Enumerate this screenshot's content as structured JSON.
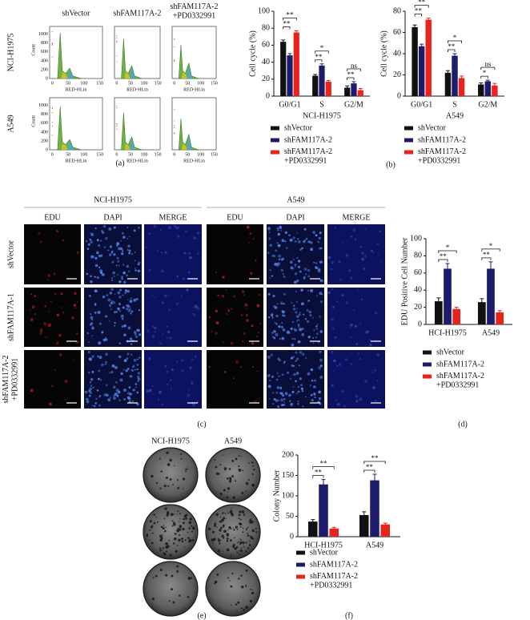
{
  "figure": {
    "panel_labels": [
      "(a)",
      "(b)",
      "(c)",
      "(d)",
      "(e)",
      "(f)"
    ],
    "flow": {
      "columns": [
        "shVector",
        "shFAM117A-2",
        "shFAM117A-2\n+PD0332991"
      ],
      "rows": [
        "NCI-H1975",
        "A549"
      ],
      "xlabel": "RED-HLin",
      "ylabel": "Count",
      "xticks": [
        0,
        50,
        100,
        150
      ],
      "yticks": [
        0,
        200,
        400,
        600,
        800,
        1000
      ]
    },
    "microscopy": {
      "groups": [
        "NCI-H1975",
        "A549"
      ],
      "channels": [
        "EDU",
        "DAPI",
        "MERGE"
      ],
      "rows": [
        "shVector",
        "shFAM117A-1",
        "shFAM117A-2\n+PD0332991"
      ]
    },
    "colony": {
      "columns": [
        "NCI-H1975",
        "A549"
      ]
    }
  },
  "chart_data": [
    {
      "type": "bar",
      "ylabel": "Cell cycle (%)",
      "xlabel": "NCI-H1975",
      "categories": [
        "G0/G1",
        "S",
        "G2/M"
      ],
      "series": [
        {
          "name": "shVector",
          "color": "#111111",
          "values": [
            64,
            24,
            10
          ],
          "errors": [
            2,
            1.5,
            2
          ]
        },
        {
          "name": "shFAM117A-2",
          "color": "#1c1c6b",
          "values": [
            48,
            36,
            15
          ],
          "errors": [
            2,
            2,
            2
          ]
        },
        {
          "name": "shFAM117A-2\n+PD0332991",
          "color": "#e8231b",
          "values": [
            75,
            17,
            7
          ],
          "errors": [
            2,
            1.5,
            2
          ]
        }
      ],
      "ylim": [
        0,
        100
      ],
      "yticks": [
        0,
        20,
        40,
        60,
        80,
        100
      ],
      "annotations": [
        "**",
        "**",
        "**",
        "*",
        "**",
        "ns"
      ]
    },
    {
      "type": "bar",
      "ylabel": "Cell cycle (%)",
      "xlabel": "A549",
      "categories": [
        "G0/G1",
        "S",
        "G2/M"
      ],
      "series": [
        {
          "name": "shVector",
          "color": "#111111",
          "values": [
            65,
            22,
            11
          ],
          "errors": [
            2,
            2,
            1.5
          ]
        },
        {
          "name": "shFAM117A-2",
          "color": "#1c1c6b",
          "values": [
            47,
            38,
            14
          ],
          "errors": [
            2,
            2,
            1
          ]
        },
        {
          "name": "shFAM117A-2\n+PD0332991",
          "color": "#e8231b",
          "values": [
            72,
            17,
            10
          ],
          "errors": [
            1.5,
            2,
            2
          ]
        }
      ],
      "ylim": [
        0,
        80
      ],
      "yticks": [
        0,
        20,
        40,
        60,
        80
      ],
      "annotations": [
        "**",
        "**",
        "**",
        "*",
        "*",
        "ns"
      ]
    },
    {
      "type": "bar",
      "ylabel": "EDU Positive Cell Number",
      "categories": [
        "HCI-H1975",
        "A549"
      ],
      "series": [
        {
          "name": "shVector",
          "color": "#111111",
          "values": [
            27,
            26
          ],
          "errors": [
            4,
            4
          ]
        },
        {
          "name": "shFAM117A-2",
          "color": "#1c1c6b",
          "values": [
            65,
            65
          ],
          "errors": [
            6,
            8
          ]
        },
        {
          "name": "shFAM117A-2\n+PD0332991",
          "color": "#e8231b",
          "values": [
            18,
            14
          ],
          "errors": [
            2,
            2
          ]
        }
      ],
      "ylim": [
        0,
        100
      ],
      "yticks": [
        0,
        20,
        40,
        60,
        80,
        100
      ],
      "annotations": [
        "**",
        "*",
        "**",
        "*"
      ]
    },
    {
      "type": "bar",
      "ylabel": "Colony Number",
      "categories": [
        "HCI-H1975",
        "A549"
      ],
      "series": [
        {
          "name": "shVector",
          "color": "#111111",
          "values": [
            37,
            53
          ],
          "errors": [
            5,
            8
          ]
        },
        {
          "name": "shFAM117A-2",
          "color": "#1c1c6b",
          "values": [
            128,
            138
          ],
          "errors": [
            12,
            15
          ]
        },
        {
          "name": "shFAM117A-2\n+PD0332991",
          "color": "#e8231b",
          "values": [
            20,
            30
          ],
          "errors": [
            3,
            3
          ]
        }
      ],
      "ylim": [
        0,
        200
      ],
      "yticks": [
        0,
        50,
        100,
        150,
        200
      ],
      "annotations": [
        "**",
        "**",
        "**",
        "**"
      ]
    }
  ]
}
